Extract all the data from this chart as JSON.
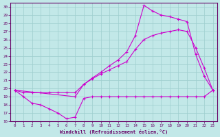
{
  "bg_color": "#c2e8e8",
  "grid_color": "#9ecece",
  "line_color": "#cc00cc",
  "xlim_min": -0.5,
  "xlim_max": 23.5,
  "ylim_min": 16,
  "ylim_max": 30.5,
  "xticks": [
    0,
    1,
    2,
    3,
    4,
    5,
    6,
    7,
    8,
    9,
    10,
    11,
    12,
    13,
    14,
    15,
    16,
    17,
    18,
    19,
    20,
    21,
    22,
    23
  ],
  "yticks": [
    16,
    17,
    18,
    19,
    20,
    21,
    22,
    23,
    24,
    25,
    26,
    27,
    28,
    29,
    30
  ],
  "xlabel": "Windchill (Refroidissement éolien,°C)",
  "line1_x": [
    0,
    1,
    2,
    3,
    4,
    5,
    6,
    7,
    8,
    9,
    10,
    11,
    12,
    13,
    14,
    15,
    16,
    17,
    18,
    19,
    20,
    21,
    22,
    23
  ],
  "line1_y": [
    19.8,
    19.0,
    18.2,
    18.0,
    17.5,
    17.0,
    16.3,
    16.5,
    18.8,
    19.0,
    19.0,
    19.0,
    19.0,
    19.0,
    19.0,
    19.0,
    19.0,
    19.0,
    19.0,
    19.0,
    19.0,
    19.0,
    19.0,
    19.8
  ],
  "line2_x": [
    0,
    1,
    2,
    3,
    4,
    5,
    6,
    7,
    8,
    9,
    10,
    11,
    12,
    13,
    14,
    15,
    16,
    17,
    18,
    19,
    20,
    21,
    22,
    23
  ],
  "line2_y": [
    19.8,
    19.5,
    19.5,
    19.5,
    19.5,
    19.5,
    19.5,
    19.5,
    20.5,
    21.2,
    21.8,
    22.3,
    22.8,
    23.3,
    24.8,
    26.0,
    26.5,
    26.8,
    27.0,
    27.2,
    27.0,
    25.0,
    22.5,
    19.8
  ],
  "line3_x": [
    0,
    7,
    8,
    9,
    10,
    11,
    12,
    13,
    14,
    15,
    16,
    17,
    18,
    19,
    20,
    21,
    22,
    23
  ],
  "line3_y": [
    19.8,
    19.0,
    20.5,
    21.3,
    22.0,
    22.8,
    23.5,
    24.5,
    26.5,
    30.2,
    29.5,
    29.0,
    28.8,
    28.5,
    28.2,
    24.2,
    21.5,
    19.8
  ]
}
